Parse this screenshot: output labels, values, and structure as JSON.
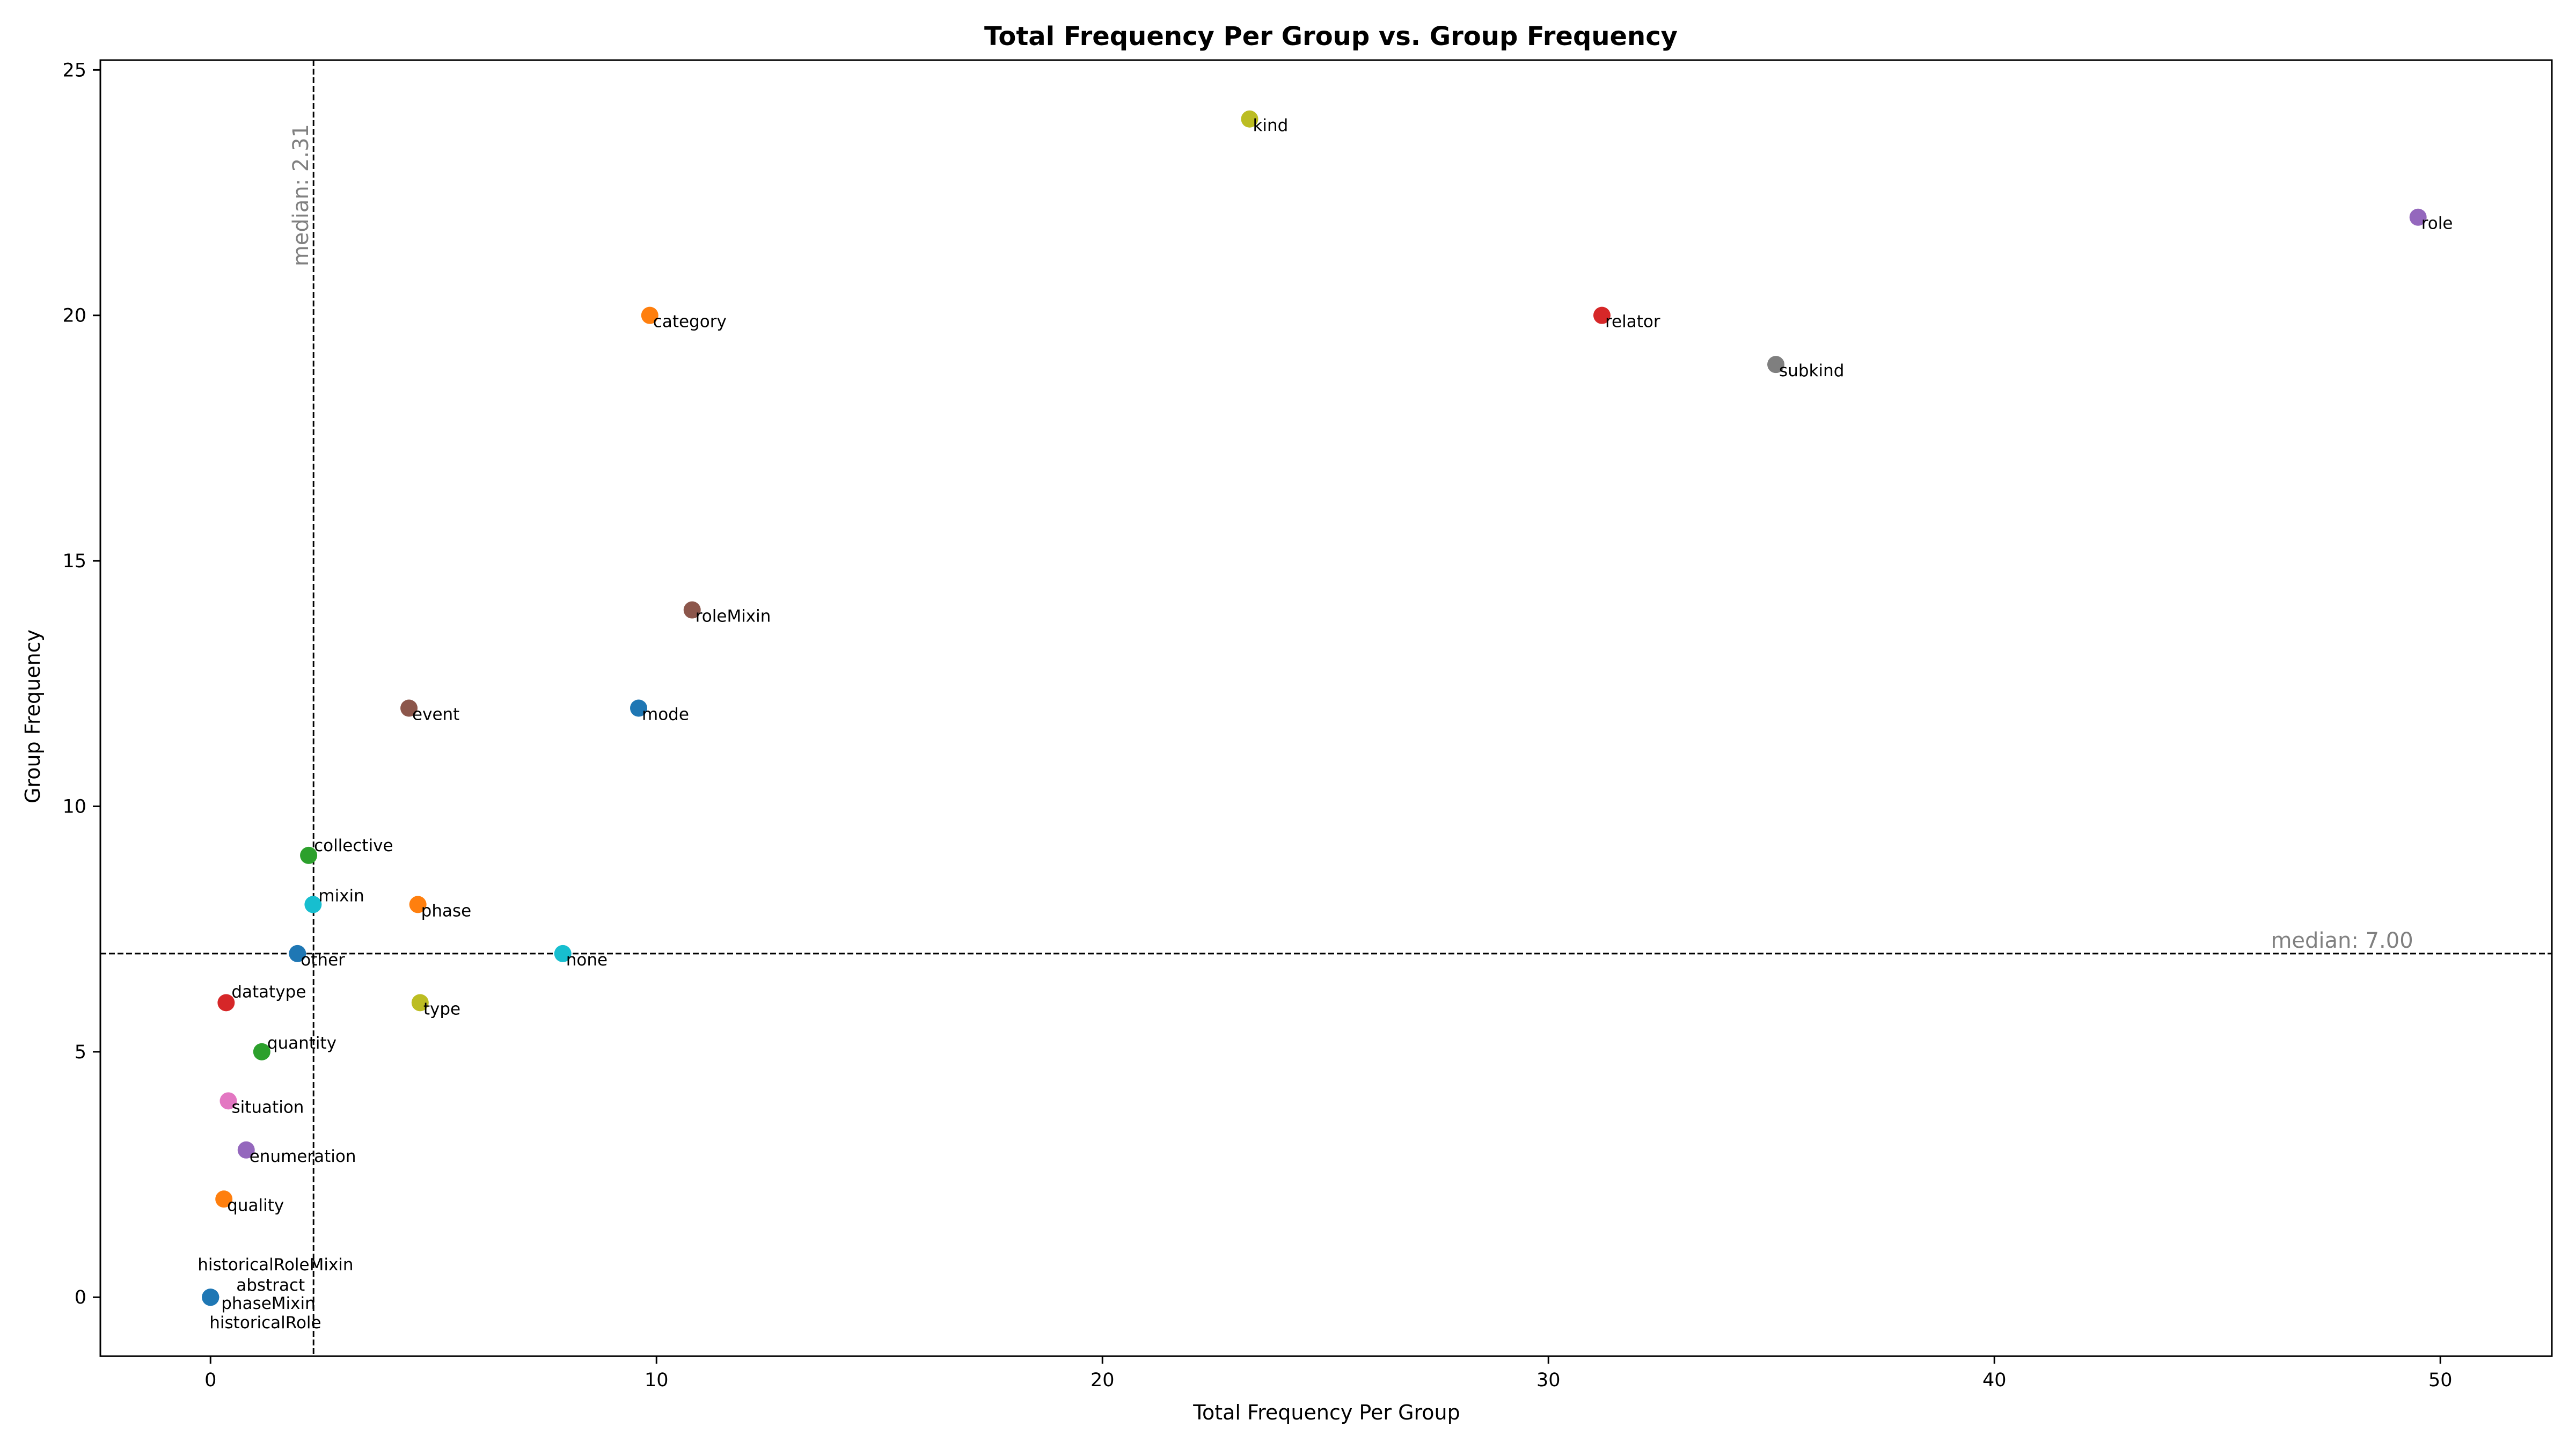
{
  "chart_data": {
    "type": "scatter",
    "title": "Total Frequency Per Group vs. Group Frequency",
    "xlabel": "Total Frequency Per Group",
    "ylabel": "Group Frequency",
    "xlim": [
      -2.47,
      52.5
    ],
    "ylim": [
      -1.2,
      25.2
    ],
    "xticks": [
      0,
      10,
      20,
      30,
      40,
      50
    ],
    "yticks": [
      0,
      5,
      10,
      15,
      20,
      25
    ],
    "grid": false,
    "median_x": {
      "value": 2.31,
      "label": "median: 2.31"
    },
    "median_y": {
      "value": 7.0,
      "label": "median: 7.00"
    },
    "points": [
      {
        "label": "role",
        "x": 49.5,
        "y": 22,
        "color": "#9467bd"
      },
      {
        "label": "subkind",
        "x": 35.1,
        "y": 19,
        "color": "#7f7f7f"
      },
      {
        "label": "relator",
        "x": 31.2,
        "y": 20,
        "color": "#d62728"
      },
      {
        "label": "kind",
        "x": 23.3,
        "y": 24,
        "color": "#bcbd22"
      },
      {
        "label": "roleMixin",
        "x": 10.8,
        "y": 14,
        "color": "#8c564b"
      },
      {
        "label": "category",
        "x": 9.85,
        "y": 20,
        "color": "#ff7f0e"
      },
      {
        "label": "mode",
        "x": 9.6,
        "y": 12,
        "color": "#1f77b4"
      },
      {
        "label": "none",
        "x": 7.9,
        "y": 7,
        "color": "#17becf",
        "label_color": "#0000ff"
      },
      {
        "label": "type",
        "x": 4.7,
        "y": 6,
        "color": "#bcbd22"
      },
      {
        "label": "phase",
        "x": 4.65,
        "y": 8,
        "color": "#ff7f0e"
      },
      {
        "label": "event",
        "x": 4.45,
        "y": 12,
        "color": "#8c564b"
      },
      {
        "label": "mixin",
        "x": 2.3,
        "y": 8,
        "color": "#17becf"
      },
      {
        "label": "collective",
        "x": 2.2,
        "y": 9,
        "color": "#2ca02c"
      },
      {
        "label": "other",
        "x": 1.95,
        "y": 7,
        "color": "#1f77b4",
        "label_color": "#ff0000"
      },
      {
        "label": "quantity",
        "x": 1.15,
        "y": 5,
        "color": "#2ca02c"
      },
      {
        "label": "enumeration",
        "x": 0.8,
        "y": 3,
        "color": "#9467bd"
      },
      {
        "label": "situation",
        "x": 0.4,
        "y": 4,
        "color": "#e377c2"
      },
      {
        "label": "datatype",
        "x": 0.35,
        "y": 6,
        "color": "#d62728"
      },
      {
        "label": "quality",
        "x": 0.3,
        "y": 2,
        "color": "#ff7f0e"
      },
      {
        "label": "historicalRoleMixin",
        "x": 0,
        "y": 0,
        "color": "#1f77b4"
      },
      {
        "label": "abstract",
        "x": 0,
        "y": 0,
        "color": "#1f77b4"
      },
      {
        "label": "phaseMixin",
        "x": 0,
        "y": 0,
        "color": "#1f77b4"
      },
      {
        "label": "historicalRole",
        "x": 0,
        "y": 0,
        "color": "#1f77b4"
      }
    ]
  }
}
